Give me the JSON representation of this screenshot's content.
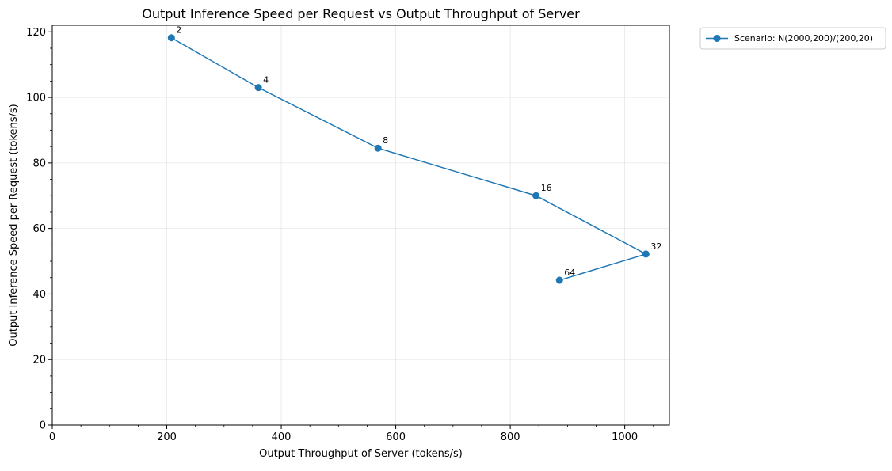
{
  "chart_data": {
    "type": "line",
    "title": "Output Inference Speed per Request vs Output Throughput of Server",
    "xlabel": "Output Throughput of Server (tokens/s)",
    "ylabel": "Output Inference Speed per Request (tokens/s)",
    "xlim": [
      0,
      1078
    ],
    "ylim": [
      0,
      122
    ],
    "xticks": [
      0,
      200,
      400,
      600,
      800,
      1000
    ],
    "yticks": [
      0,
      20,
      40,
      60,
      80,
      100,
      120
    ],
    "grid": true,
    "legend_position": "outside-top-right",
    "series": [
      {
        "name": "Scenario: N(2000,200)/(200,20)",
        "color": "#1f77b4",
        "marker": "circle",
        "x": [
          208,
          360,
          569,
          845,
          1037,
          886
        ],
        "y": [
          118.2,
          103.0,
          84.5,
          70.0,
          52.2,
          44.2
        ],
        "labels": [
          "2",
          "4",
          "8",
          "16",
          "32",
          "64"
        ]
      }
    ]
  }
}
